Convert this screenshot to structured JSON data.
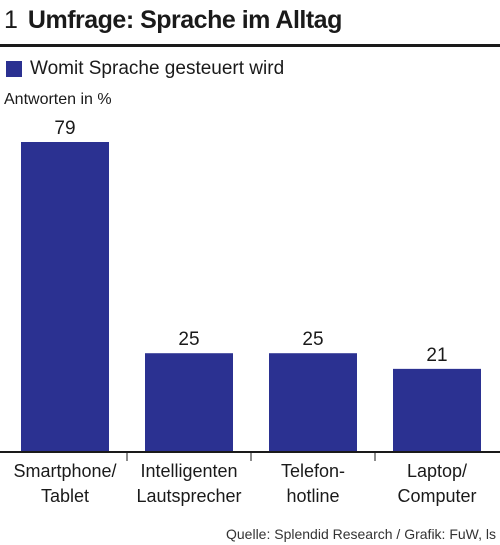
{
  "header": {
    "figure_number": "1",
    "title": "Umfrage: Sprache im Alltag"
  },
  "colors": {
    "bar": "#2b3191",
    "axis": "#1a1a1a",
    "text": "#1a1a1a"
  },
  "chart_data": {
    "type": "bar",
    "title": "Umfrage: Sprache im Alltag",
    "ylabel": "Antworten in %",
    "ylim": [
      0,
      79
    ],
    "grid": false,
    "legend": "top-left",
    "series": [
      {
        "name": "Womit Sprache gesteuert wird",
        "values": [
          79,
          25,
          25,
          21
        ]
      }
    ],
    "categories": [
      [
        "Smartphone/",
        "Tablet"
      ],
      [
        "Intelligenten",
        "Lautsprecher"
      ],
      [
        "Telefon-",
        "hotline"
      ],
      [
        "Laptop/",
        "Computer"
      ]
    ],
    "data_labels": [
      "79",
      "25",
      "25",
      "21"
    ]
  },
  "footer": {
    "source": "Quelle: Splendid Research / Grafik: FuW, ls"
  }
}
